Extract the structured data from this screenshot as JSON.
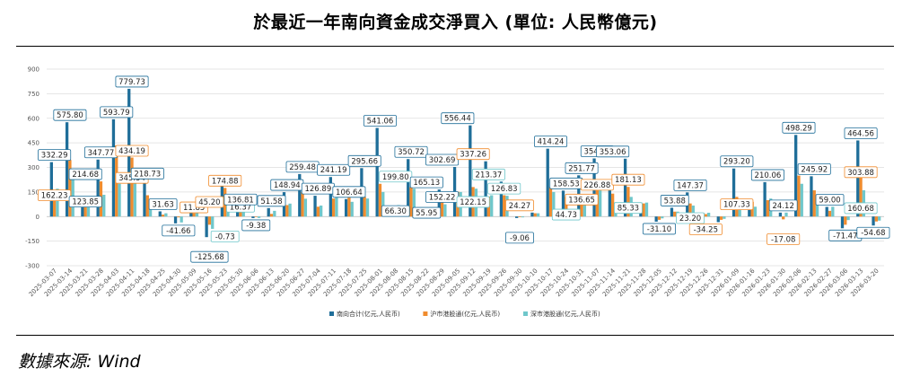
{
  "title": "於最近一年南向資金成交淨買入 (單位: 人民幣億元)",
  "source": "數據來源: Wind",
  "colors": {
    "south": "#1f6e99",
    "sh": "#f08c2e",
    "sz": "#6fc7cb",
    "grid": "#dddddd"
  },
  "chart_data": {
    "type": "bar",
    "categories": [
      "2025-03-07",
      "2025-03-14",
      "2025-03-21",
      "2025-03-28",
      "2025-04-03",
      "2025-04-11",
      "2025-04-18",
      "2025-04-25",
      "2025-04-30",
      "2025-05-09",
      "2025-05-16",
      "2025-05-23",
      "2025-05-30",
      "2025-06-06",
      "2025-06-13",
      "2025-06-20",
      "2025-06-27",
      "2025-07-04",
      "2025-07-11",
      "2025-07-18",
      "2025-07-25",
      "2025-08-01",
      "2025-08-08",
      "2025-08-15",
      "2025-08-22",
      "2025-08-29",
      "2025-09-05",
      "2025-09-12",
      "2025-09-19",
      "2025-09-26",
      "2025-09-30",
      "2025-10-10",
      "2025-10-17",
      "2025-10-24",
      "2025-10-31",
      "2025-11-07",
      "2025-11-14",
      "2025-11-21",
      "2025-11-28",
      "2025-12-05",
      "2025-12-12",
      "2025-12-19",
      "2025-12-26",
      "2025-12-31",
      "2026-01-09",
      "2026-01-16",
      "2026-01-23",
      "2026-01-30",
      "2026-02-06",
      "2026-02-13",
      "2026-02-27",
      "2026-03-06",
      "2026-03-13",
      "2026-03-20"
    ],
    "series": [
      {
        "name": "南向合计(亿元,人民币)",
        "values": [
          332.29,
          575.8,
          123.85,
          347.77,
          593.79,
          779.73,
          218.73,
          31.63,
          -41.66,
          45.2,
          -125.68,
          251.0,
          136.81,
          -9.38,
          51.58,
          148.94,
          259.48,
          126.89,
          241.19,
          106.64,
          295.66,
          541.06,
          66.3,
          350.72,
          55.95,
          165.13,
          302.69,
          556.44,
          337.26,
          213.37,
          -9.06,
          24.27,
          414.24,
          158.53,
          251.77,
          354.69,
          226.88,
          353.06,
          85.33,
          -31.1,
          53.88,
          147.37,
          23.2,
          -34.25,
          293.2,
          107.33,
          210.06,
          24.12,
          498.29,
          245.92,
          59.0,
          -71.47,
          464.56,
          -54.68
        ]
      },
      {
        "name": "沪市港股通(亿元,人民币)",
        "values": [
          162.23,
          345.54,
          100.0,
          214.68,
          434.19,
          360.0,
          130.0,
          11.85,
          -5.0,
          20.0,
          -50.0,
          174.88,
          80.0,
          -0.73,
          16.37,
          70.0,
          150.0,
          60.0,
          110.0,
          180.0,
          120.0,
          199.8,
          60.0,
          180.0,
          50.0,
          90.0,
          152.22,
          180.0,
          122.15,
          130.0,
          -4.0,
          20.0,
          180.0,
          120.0,
          136.65,
          180.0,
          140.0,
          181.13,
          80.0,
          -20.0,
          30.0,
          80.0,
          15.0,
          -20.0,
          120.0,
          90.0,
          100.0,
          -17.08,
          250.0,
          160.0,
          35.0,
          -50.0,
          303.88,
          -30.0
        ]
      },
      {
        "name": "深市港股通(亿元,人民币)",
        "values": [
          170.0,
          230.0,
          70.0,
          133.0,
          200.0,
          230.0,
          90.0,
          20.0,
          -36.0,
          25.0,
          -75.0,
          76.0,
          57.0,
          -8.6,
          35.0,
          79.0,
          109.0,
          67.0,
          131.0,
          90.0,
          110.0,
          150.0,
          70.0,
          170.0,
          45.0,
          75.0,
          150.0,
          170.0,
          130.0,
          126.83,
          -5.0,
          20.0,
          150.0,
          44.73,
          115.0,
          174.69,
          86.88,
          120.0,
          85.33,
          -11.0,
          30.0,
          67.0,
          23.2,
          -14.0,
          90.0,
          60.0,
          110.0,
          24.12,
          200.0,
          86.0,
          60.0,
          -21.47,
          160.68,
          -24.68
        ]
      }
    ],
    "value_labels": [
      {
        "text": "332.29",
        "cat": 0
      },
      {
        "text": "162.23",
        "cat": 0
      },
      {
        "text": "575.80",
        "cat": 1
      },
      {
        "text": "214.68",
        "cat": 2
      },
      {
        "text": "123.85",
        "cat": 2
      },
      {
        "text": "347.77",
        "cat": 3
      },
      {
        "text": "593.79",
        "cat": 4
      },
      {
        "text": "779.73",
        "cat": 5
      },
      {
        "text": "434.19",
        "cat": 5
      },
      {
        "text": "345.54",
        "cat": 5
      },
      {
        "text": "218.73",
        "cat": 6
      },
      {
        "text": "31.63",
        "cat": 7
      },
      {
        "text": "-41.66",
        "cat": 8
      },
      {
        "text": "11.85",
        "cat": 9
      },
      {
        "text": "45.20",
        "cat": 10
      },
      {
        "text": "-125.68",
        "cat": 10
      },
      {
        "text": "174.88",
        "cat": 11
      },
      {
        "text": "-0.73",
        "cat": 11
      },
      {
        "text": "16.37",
        "cat": 12
      },
      {
        "text": "136.81",
        "cat": 12
      },
      {
        "text": "-9.38",
        "cat": 13
      },
      {
        "text": "51.58",
        "cat": 14
      },
      {
        "text": "148.94",
        "cat": 15
      },
      {
        "text": "259.48",
        "cat": 16
      },
      {
        "text": "126.89",
        "cat": 17
      },
      {
        "text": "241.19",
        "cat": 18
      },
      {
        "text": "106.64",
        "cat": 19
      },
      {
        "text": "295.66",
        "cat": 20
      },
      {
        "text": "541.06",
        "cat": 21
      },
      {
        "text": "199.80",
        "cat": 22
      },
      {
        "text": "66.30",
        "cat": 22
      },
      {
        "text": "350.72",
        "cat": 23
      },
      {
        "text": "165.13",
        "cat": 24
      },
      {
        "text": "55.95",
        "cat": 24
      },
      {
        "text": "302.69",
        "cat": 25
      },
      {
        "text": "152.22",
        "cat": 25
      },
      {
        "text": "556.44",
        "cat": 26
      },
      {
        "text": "337.26",
        "cat": 27
      },
      {
        "text": "122.15",
        "cat": 27
      },
      {
        "text": "213.37",
        "cat": 28
      },
      {
        "text": "126.83",
        "cat": 29
      },
      {
        "text": "24.27",
        "cat": 30
      },
      {
        "text": "-9.06",
        "cat": 30
      },
      {
        "text": "414.24",
        "cat": 32
      },
      {
        "text": "158.53",
        "cat": 33
      },
      {
        "text": "44.73",
        "cat": 33
      },
      {
        "text": "251.77",
        "cat": 34
      },
      {
        "text": "136.65",
        "cat": 34
      },
      {
        "text": "354.69",
        "cat": 35
      },
      {
        "text": "226.88",
        "cat": 35
      },
      {
        "text": "353.06",
        "cat": 36
      },
      {
        "text": "181.13",
        "cat": 37
      },
      {
        "text": "85.33",
        "cat": 37
      },
      {
        "text": "53.88",
        "cat": 40
      },
      {
        "text": "-31.10",
        "cat": 39
      },
      {
        "text": "147.37",
        "cat": 41
      },
      {
        "text": "23.20",
        "cat": 41
      },
      {
        "text": "-34.25",
        "cat": 42
      },
      {
        "text": "293.20",
        "cat": 44
      },
      {
        "text": "107.33",
        "cat": 44
      },
      {
        "text": "210.06",
        "cat": 46
      },
      {
        "text": "24.12",
        "cat": 47
      },
      {
        "text": "-17.08",
        "cat": 47
      },
      {
        "text": "498.29",
        "cat": 48
      },
      {
        "text": "245.92",
        "cat": 49
      },
      {
        "text": "59.00",
        "cat": 50
      },
      {
        "text": "-71.47",
        "cat": 51
      },
      {
        "text": "464.56",
        "cat": 52
      },
      {
        "text": "303.88",
        "cat": 52
      },
      {
        "text": "160.68",
        "cat": 52
      },
      {
        "text": "-54.68",
        "cat": 53
      }
    ],
    "ylim": [
      -300,
      900
    ],
    "yticks": [
      -300,
      -150,
      0,
      150,
      300,
      450,
      600,
      750,
      900
    ],
    "grid": true,
    "legend_position": "bottom-center"
  }
}
